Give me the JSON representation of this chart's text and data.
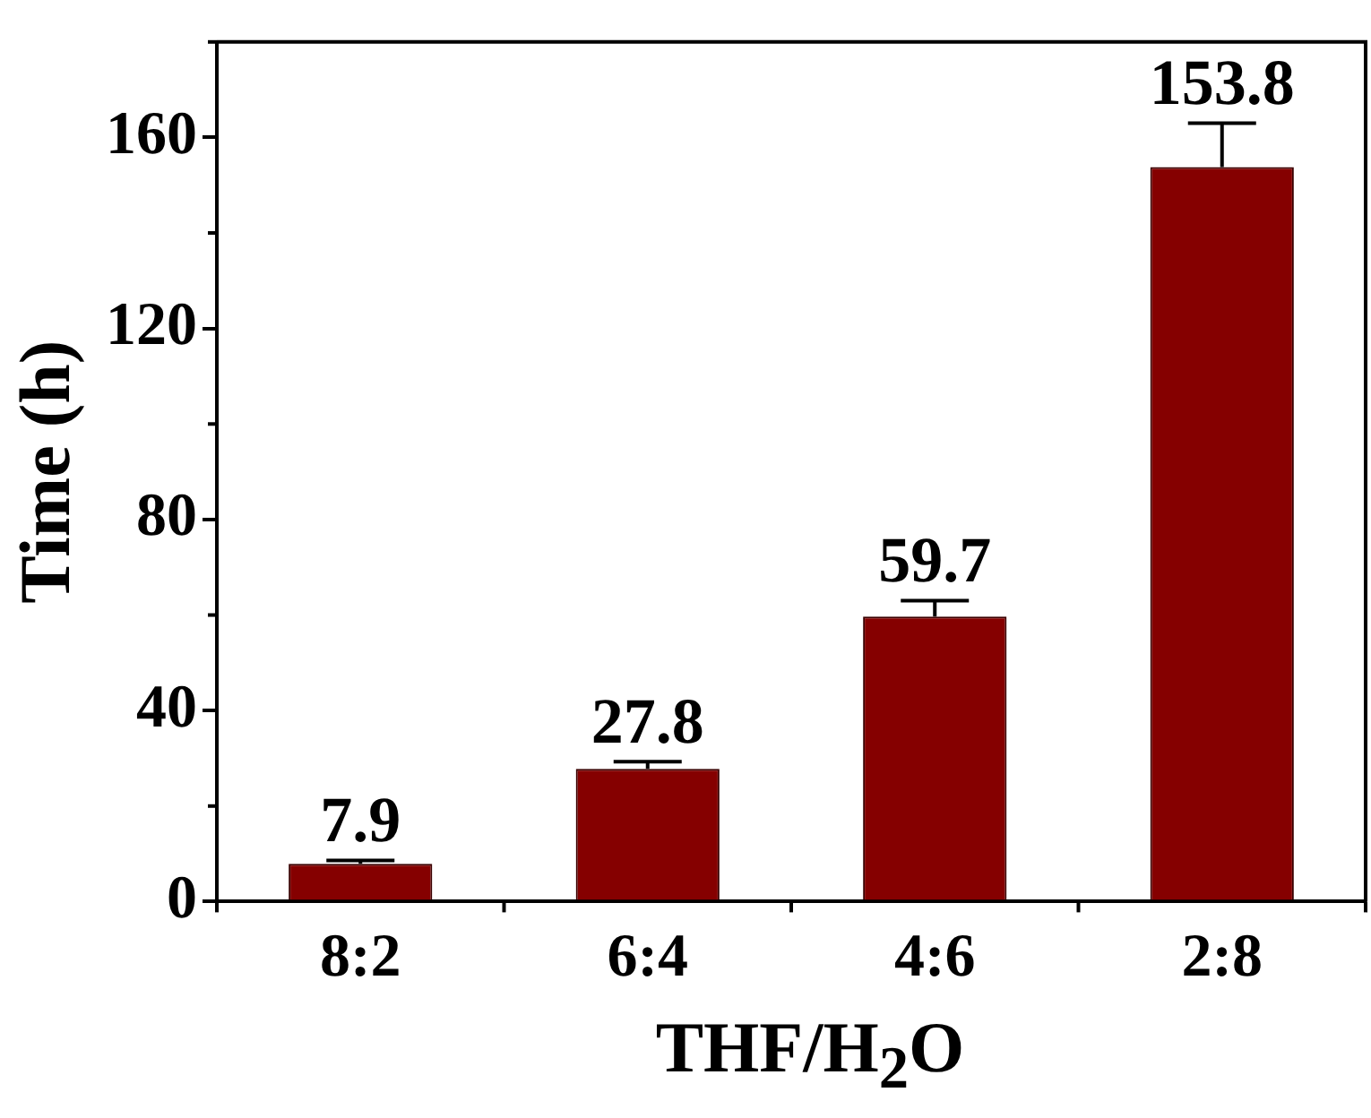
{
  "chart_data": {
    "type": "bar",
    "xlabel": "THF/H$_{2}$O",
    "ylabel": "Time (h)",
    "categories": [
      "8:2",
      "6:4",
      "4:6",
      "2:8"
    ],
    "values": [
      7.9,
      27.8,
      59.7,
      153.8
    ],
    "errors": [
      [
        7.9,
        8.6
      ],
      [
        27.8,
        29.3
      ],
      [
        59.7,
        63.0
      ],
      [
        153.8,
        163.0
      ]
    ],
    "color": "#850000",
    "ylim": [
      0,
      180
    ],
    "yticks": [
      0,
      40,
      80,
      120,
      160
    ],
    "grid": false,
    "legend": false,
    "data_labels": true
  }
}
